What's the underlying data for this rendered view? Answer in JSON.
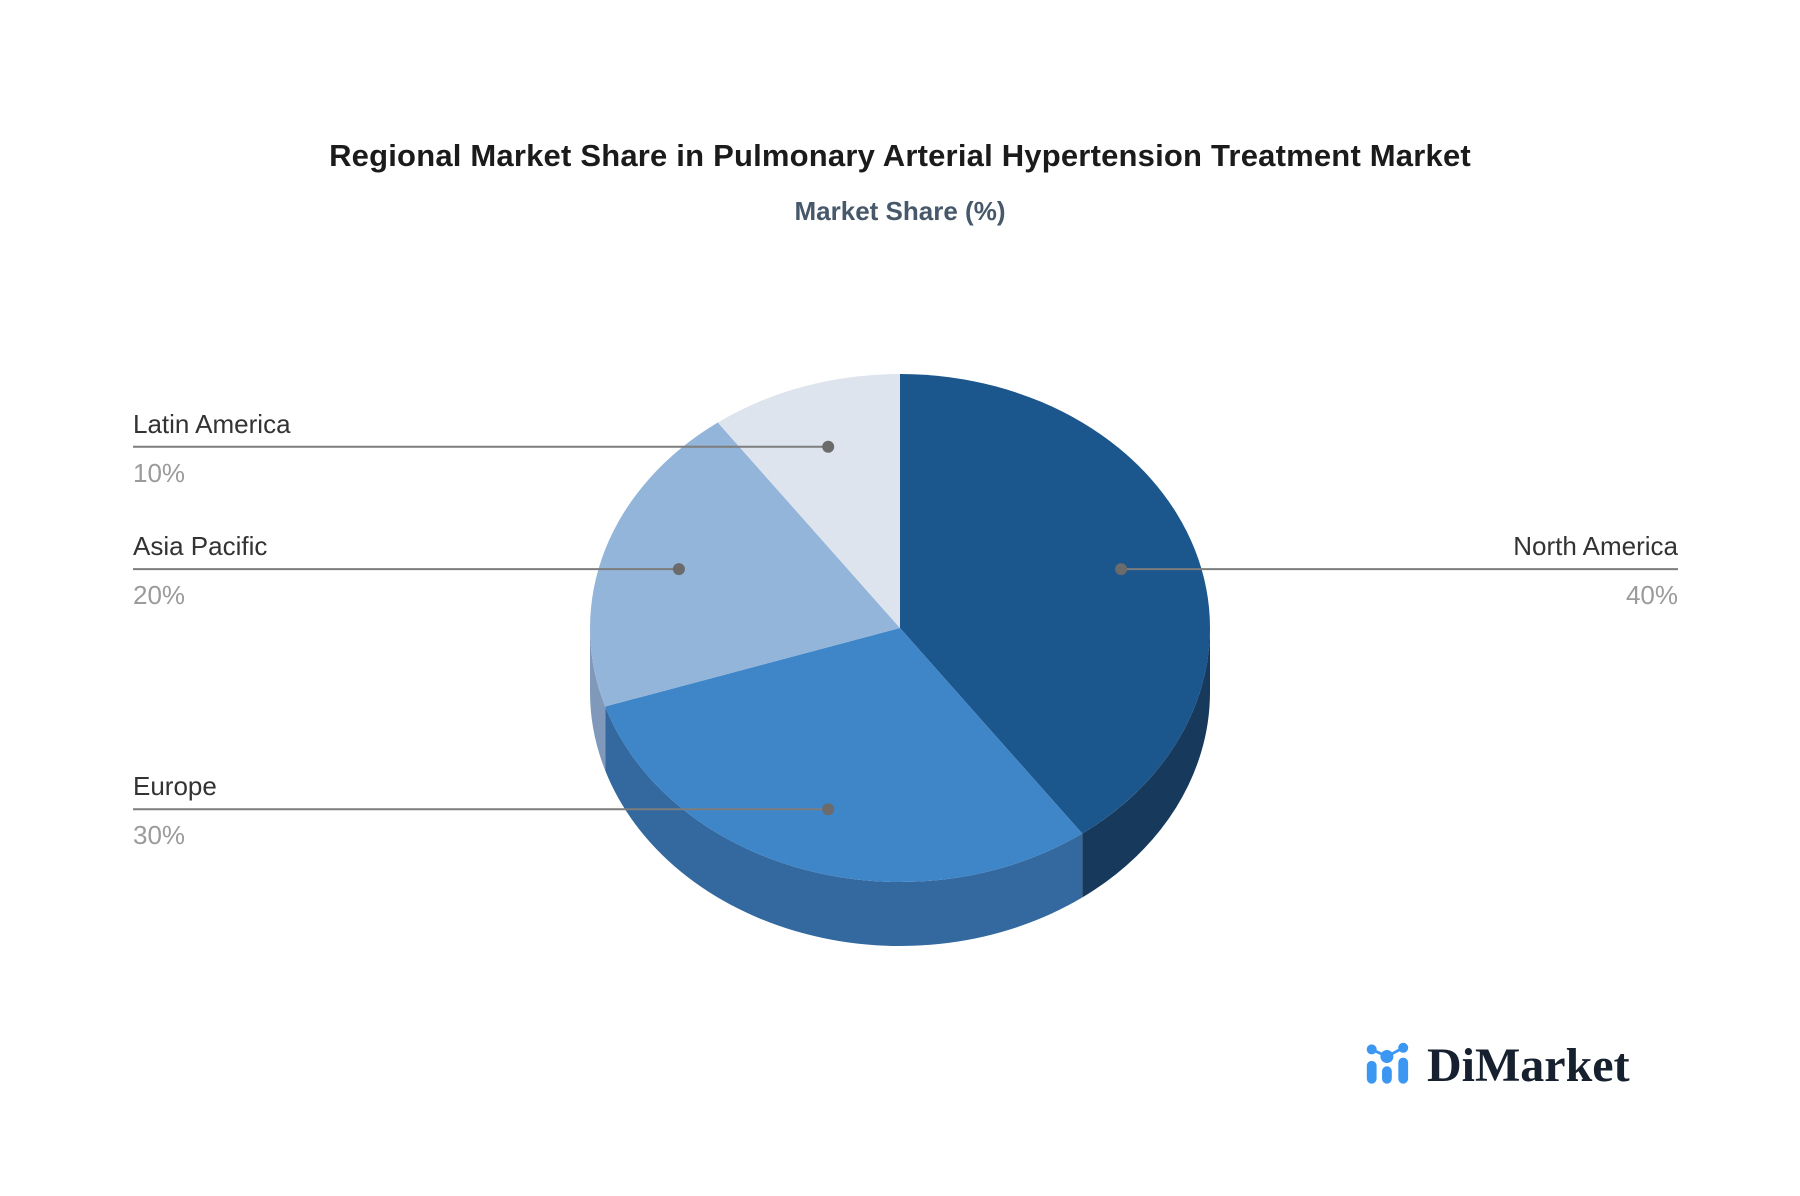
{
  "title": "Regional Market Share in Pulmonary Arterial Hypertension Treatment Market",
  "subtitle": "Market Share (%)",
  "chart_data": {
    "type": "pie",
    "style": "3d",
    "title": "Regional Market Share in Pulmonary Arterial Hypertension Treatment Market",
    "subtitle": "Market Share (%)",
    "unit": "%",
    "start_angle_deg": 0,
    "direction": "clockwise",
    "legend_position": "none",
    "labels_style": "callout-leader-lines",
    "slices": [
      {
        "label": "North America",
        "value": 40,
        "display": "40%",
        "color": "#1b568c",
        "rim_color": "#16395c"
      },
      {
        "label": "Europe",
        "value": 30,
        "display": "30%",
        "color": "#3e86c8",
        "rim_color": "#33699e"
      },
      {
        "label": "Asia Pacific",
        "value": 20,
        "display": "20%",
        "color": "#93b5d9",
        "rim_color": "#8099ba"
      },
      {
        "label": "Latin America",
        "value": 10,
        "display": "10%",
        "color": "#dde4ee",
        "rim_color": "#c9d3e0"
      }
    ]
  },
  "colors": {
    "background": "#ffffff",
    "title": "#1b1b1b",
    "subtitle": "#47586a",
    "label_name": "#333333",
    "label_percent": "#9b9b9b",
    "leader_line": "#7d7d7d",
    "leader_dot": "#6b6b6b"
  },
  "branding": {
    "logo_text": "DiMarket",
    "logo_icon": "bar-chart-with-trend-dots-icon",
    "logo_icon_color": "#3c97f3",
    "logo_text_color": "#16202e"
  }
}
